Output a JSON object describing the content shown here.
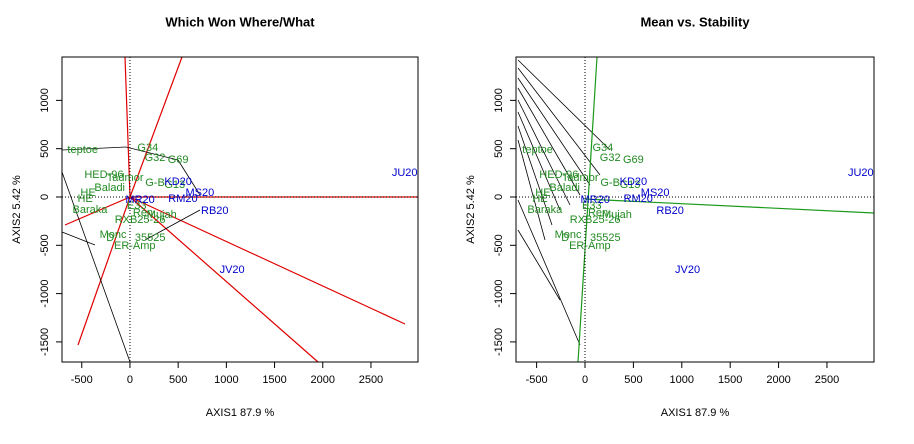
{
  "chart_data": [
    {
      "type": "biplot",
      "title": "Which Won Where/What",
      "xlabel": "AXIS1 87.9 %",
      "ylabel": "AXIS2 5.42 %",
      "xlim": [
        -705,
        2988
      ],
      "ylim": [
        -1708,
        1449
      ],
      "xticks": [
        -500,
        0,
        500,
        1000,
        1500,
        2000,
        2500
      ],
      "yticks": [
        -1500,
        -1000,
        -500,
        0,
        500,
        1000
      ],
      "genotypes": {
        "color": "#228b22",
        "labels": [
          "teptoe",
          "HED-96",
          "Tadmor",
          "Baladi",
          "HE",
          "HE",
          "Baraka",
          "G34",
          "G32",
          "G69",
          "G-B",
          "G13",
          "E33",
          "RXB25-26",
          "Ren",
          "Mujah",
          "Monc",
          "D",
          "35525",
          "ER-Amp"
        ],
        "x": [
          -490,
          -270,
          -50,
          -210,
          -435,
          -465,
          -415,
          185,
          260,
          500,
          260,
          465,
          70,
          105,
          135,
          330,
          -175,
          -205,
          210,
          50
        ],
        "y": [
          487,
          228,
          197,
          93,
          41,
          -20,
          -135,
          507,
          404,
          383,
          145,
          124,
          -93,
          -238,
          -166,
          -186,
          -393,
          -424,
          -424,
          -507
        ]
      },
      "environments": {
        "color": "#0000cd",
        "labels": [
          "JU20",
          "KD20",
          "MS20",
          "RM20",
          "MR20",
          "RB20",
          "JV20"
        ],
        "x": [
          2850,
          500,
          725,
          550,
          105,
          880,
          1060
        ],
        "y": [
          248,
          155,
          41,
          -20,
          -31,
          -145,
          -756
        ]
      }
    },
    {
      "type": "biplot",
      "title": "Mean vs. Stability",
      "xlabel": "AXIS1 87.9 %",
      "ylabel": "AXIS2 5.42 %",
      "xlim": [
        -713,
        2986
      ],
      "ylim": [
        -1708,
        1449
      ],
      "xticks": [
        -500,
        0,
        500,
        1000,
        1500,
        2000,
        2500
      ],
      "yticks": [
        -1500,
        -1000,
        -500,
        0,
        500,
        1000
      ],
      "genotypes": {
        "color": "#228b22",
        "labels": [
          "teptoe",
          "HED-96",
          "Tadmor",
          "Baladi",
          "HE",
          "HE",
          "Baraka",
          "G34",
          "G32",
          "G69",
          "G-B",
          "G13",
          "E33",
          "RXB25-26",
          "Ren",
          "Mujah",
          "Monc",
          "D",
          "35525",
          "ER-Amp"
        ],
        "x": [
          -490,
          -270,
          -50,
          -210,
          -435,
          -465,
          -415,
          185,
          260,
          500,
          260,
          465,
          70,
          105,
          135,
          330,
          -175,
          -205,
          210,
          50
        ],
        "y": [
          487,
          228,
          197,
          93,
          41,
          -20,
          -135,
          507,
          404,
          383,
          145,
          124,
          -93,
          -238,
          -166,
          -186,
          -393,
          -424,
          -424,
          -507
        ]
      },
      "environments": {
        "color": "#0000cd",
        "labels": [
          "JU20",
          "KD20",
          "MS20",
          "RM20",
          "MR20",
          "RB20",
          "JV20"
        ],
        "x": [
          2850,
          500,
          725,
          550,
          105,
          880,
          1060
        ],
        "y": [
          248,
          155,
          41,
          -20,
          -31,
          -145,
          -756
        ]
      }
    }
  ]
}
